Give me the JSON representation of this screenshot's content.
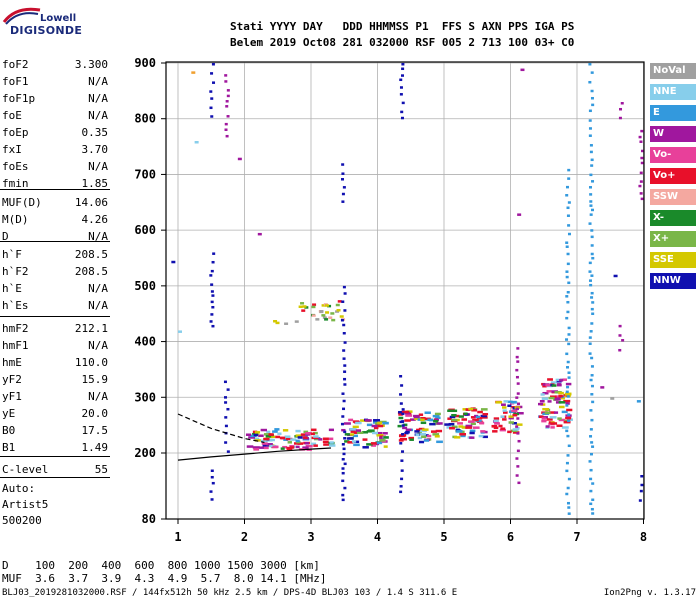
{
  "logo": {
    "top": "Lowell",
    "main": "DIGISONDE"
  },
  "header": {
    "line1": "Stati YYYY DAY   DDD HHMMSS P1  FFS S AXN PPS IGA PS",
    "line2": "Belem 2019 Oct08 281 032000 RSF 005 2 713 100 03+ C0"
  },
  "params": [
    {
      "label": "foF2",
      "value": "3.300"
    },
    {
      "label": "foF1",
      "value": "N/A"
    },
    {
      "label": "foF1p",
      "value": "N/A"
    },
    {
      "label": "foE",
      "value": "N/A"
    },
    {
      "label": "foEp",
      "value": "0.35"
    },
    {
      "label": "fxI",
      "value": "3.70"
    },
    {
      "label": "foEs",
      "value": "N/A"
    },
    {
      "label": "fmin",
      "value": "1.85"
    },
    {
      "label": "MUF(D)",
      "value": "14.06"
    },
    {
      "label": "M(D)",
      "value": "4.26"
    },
    {
      "label": "D",
      "value": "N/A"
    },
    {
      "label": "h`F",
      "value": "208.5"
    },
    {
      "label": "h`F2",
      "value": "208.5"
    },
    {
      "label": "h`E",
      "value": "N/A"
    },
    {
      "label": "h`Es",
      "value": "N/A"
    },
    {
      "label": "hmF2",
      "value": "212.1"
    },
    {
      "label": "hmF1",
      "value": "N/A"
    },
    {
      "label": "hmE",
      "value": "110.0"
    },
    {
      "label": "yF2",
      "value": "15.9"
    },
    {
      "label": "yF1",
      "value": "N/A"
    },
    {
      "label": "yE",
      "value": "20.0"
    },
    {
      "label": "B0",
      "value": "17.5"
    },
    {
      "label": "B1",
      "value": "1.49"
    },
    {
      "label": "C-level",
      "value": "55"
    }
  ],
  "auto": {
    "line1": "Auto:",
    "line2": "Artist5",
    "line3": "500200"
  },
  "legend": [
    {
      "label": "NoVal",
      "color": "#a0a0a0"
    },
    {
      "label": "NNE",
      "color": "#87ceeb"
    },
    {
      "label": "E",
      "color": "#3399dd"
    },
    {
      "label": "W",
      "color": "#a0179e"
    },
    {
      "label": "Vo-",
      "color": "#e8409a"
    },
    {
      "label": "Vo+",
      "color": "#e8102a"
    },
    {
      "label": "SSW",
      "color": "#f4a8a0"
    },
    {
      "label": "X-",
      "color": "#1a8a2a"
    },
    {
      "label": "X+",
      "color": "#7ab648"
    },
    {
      "label": "SSE",
      "color": "#d4c800"
    },
    {
      "label": "NNW",
      "color": "#1010b0"
    }
  ],
  "footer": {
    "d_row": "D    100  200  400  600  800 1000 1500 3000 [km]",
    "muf_row": "MUF  3.6  3.7  3.9  4.3  4.9  5.7  8.0 14.1 [MHz]",
    "status_left": "BLJ03_2019281032000.RSF / 144fx512h 50 kHz 2.5 km / DPS-4D BLJ03 103 / 1.4 S 311.6 E",
    "status_right": "Ion2Png v. 1.3.17"
  },
  "chart_data": {
    "type": "scatter",
    "x_ticks": [
      "1",
      "2",
      "3",
      "4",
      "5",
      "6",
      "7",
      "8"
    ],
    "y_ticks": [
      "80",
      "200",
      "300",
      "400",
      "500",
      "600",
      "700",
      "800",
      "900"
    ],
    "xlim": [
      0.85,
      8
    ],
    "ylim": [
      80,
      900
    ],
    "grid": true,
    "profile_curve": [
      [
        1.0,
        187
      ],
      [
        1.5,
        193
      ],
      [
        2.0,
        198
      ],
      [
        2.5,
        203
      ],
      [
        3.0,
        207
      ],
      [
        3.3,
        209
      ]
    ],
    "trace_curve": [
      [
        1.0,
        270
      ],
      [
        1.5,
        244
      ],
      [
        2.0,
        226
      ],
      [
        2.3,
        219
      ]
    ],
    "clusters": [
      {
        "x0": 2.0,
        "x1": 3.3,
        "y0": 208,
        "y1": 245
      },
      {
        "x0": 3.45,
        "x1": 4.1,
        "y0": 212,
        "y1": 262
      },
      {
        "x0": 4.3,
        "x1": 4.9,
        "y0": 220,
        "y1": 278
      },
      {
        "x0": 5.0,
        "x1": 5.6,
        "y0": 228,
        "y1": 285
      },
      {
        "x0": 5.7,
        "x1": 6.1,
        "y0": 238,
        "y1": 295
      },
      {
        "x0": 6.4,
        "x1": 6.85,
        "y0": 245,
        "y1": 335
      }
    ],
    "upper_cluster": [
      {
        "x0": 2.4,
        "x1": 2.8,
        "y0": 432,
        "y1": 440
      },
      {
        "x0": 2.8,
        "x1": 3.5,
        "y0": 440,
        "y1": 475
      }
    ],
    "columns": [
      {
        "x": 1.5,
        "y0": 800,
        "y1": 900,
        "color": "#1010b0"
      },
      {
        "x": 1.5,
        "y0": 420,
        "y1": 560,
        "color": "#1010b0"
      },
      {
        "x": 1.5,
        "y0": 110,
        "y1": 170,
        "color": "#1010b0"
      },
      {
        "x": 1.72,
        "y0": 760,
        "y1": 880,
        "color": "#a0179e"
      },
      {
        "x": 1.72,
        "y0": 200,
        "y1": 330,
        "color": "#1010b0"
      },
      {
        "x": 3.48,
        "y0": 650,
        "y1": 720,
        "color": "#1010b0"
      },
      {
        "x": 3.48,
        "y0": 110,
        "y1": 500,
        "color": "#1010b0"
      },
      {
        "x": 4.35,
        "y0": 800,
        "y1": 900,
        "color": "#1010b0"
      },
      {
        "x": 4.35,
        "y0": 120,
        "y1": 340,
        "color": "#1010b0"
      },
      {
        "x": 6.1,
        "y0": 130,
        "y1": 390,
        "color": "#a0179e"
      },
      {
        "x": 6.85,
        "y0": 85,
        "y1": 710,
        "color": "#3399dd"
      },
      {
        "x": 7.2,
        "y0": 85,
        "y1": 900,
        "color": "#3399dd"
      },
      {
        "x": 7.65,
        "y0": 380,
        "y1": 430,
        "color": "#a0179e"
      },
      {
        "x": 7.65,
        "y0": 800,
        "y1": 830,
        "color": "#a0179e"
      },
      {
        "x": 7.95,
        "y0": 650,
        "y1": 780,
        "color": "#a0179e"
      },
      {
        "x": 7.95,
        "y0": 110,
        "y1": 160,
        "color": "#1010b0"
      }
    ]
  }
}
